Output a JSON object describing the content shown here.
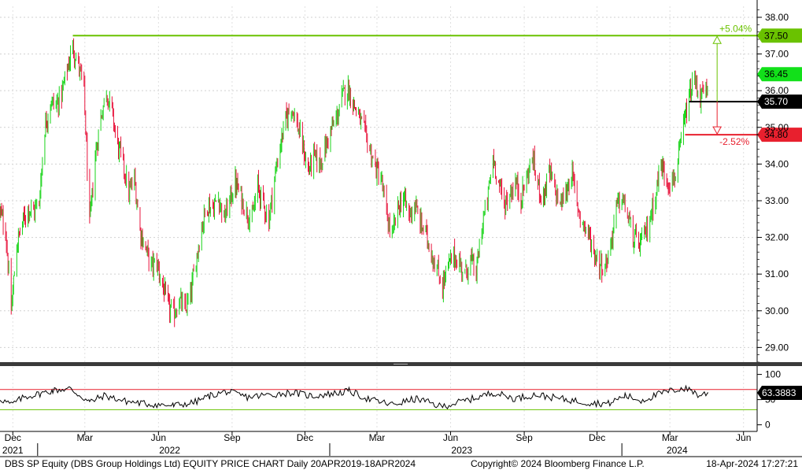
{
  "chart_data": {
    "type": "candlestick",
    "instrument": "DBS SP Equity (DBS Group Holdings Ltd) EQUITY PRICE CHART",
    "footer": {
      "left": "DBS SP Equity (DBS Group Holdings Ltd) EQUITY PRICE CHART  Daily 20APR2019-18APR2024",
      "center": "Copyright© 2024 Bloomberg Finance L.P.",
      "right": "18-Apr-2024 17:27:21"
    },
    "price_axis": {
      "ylim": [
        28.6,
        38.3
      ],
      "ticks": [
        "38.00",
        "37.00",
        "36.00",
        "35.00",
        "34.00",
        "33.00",
        "32.00",
        "31.00",
        "30.00",
        "29.00"
      ],
      "tick_values": [
        38,
        37,
        36,
        35,
        34,
        33,
        32,
        31,
        30,
        29
      ]
    },
    "rsi_axis": {
      "ylim": [
        -10,
        115
      ],
      "ticks": [
        "100",
        "50",
        "0"
      ],
      "tick_values": [
        100,
        50,
        0
      ],
      "overbought": 70,
      "oversold": 30,
      "last_value": "63.3883"
    },
    "x_axis": {
      "start_date": "2021-11-15",
      "end_date": "2024-06-18",
      "month_labels": [
        {
          "label": "Dec",
          "date": "2021-12-01"
        },
        {
          "label": "Mar",
          "date": "2022-03-01"
        },
        {
          "label": "Jun",
          "date": "2022-06-01"
        },
        {
          "label": "Sep",
          "date": "2022-09-01"
        },
        {
          "label": "Dec",
          "date": "2022-12-01"
        },
        {
          "label": "Mar",
          "date": "2023-03-01"
        },
        {
          "label": "Jun",
          "date": "2023-06-01"
        },
        {
          "label": "Sep",
          "date": "2023-09-01"
        },
        {
          "label": "Dec",
          "date": "2023-12-01"
        },
        {
          "label": "Mar",
          "date": "2024-03-01"
        },
        {
          "label": "Jun",
          "date": "2024-06-01"
        }
      ],
      "year_labels": [
        {
          "label": "2021",
          "date": "2021-12-01"
        },
        {
          "label": "2022",
          "date": "2022-06-15"
        },
        {
          "label": "2023",
          "date": "2023-06-15"
        },
        {
          "label": "2024",
          "date": "2024-03-10"
        }
      ]
    },
    "price_path": [
      [
        "2021-11-15",
        32.7
      ],
      [
        "2021-11-22",
        32.2
      ],
      [
        "2021-11-29",
        30.0
      ],
      [
        "2021-12-06",
        31.8
      ],
      [
        "2021-12-13",
        32.4
      ],
      [
        "2021-12-20",
        32.8
      ],
      [
        "2021-12-27",
        32.7
      ],
      [
        "2022-01-03",
        33.0
      ],
      [
        "2022-01-10",
        35.0
      ],
      [
        "2022-01-17",
        35.7
      ],
      [
        "2022-01-24",
        35.6
      ],
      [
        "2022-01-31",
        35.9
      ],
      [
        "2022-02-07",
        36.6
      ],
      [
        "2022-02-14",
        37.2
      ],
      [
        "2022-02-21",
        36.7
      ],
      [
        "2022-02-28",
        36.0
      ],
      [
        "2022-03-07",
        32.3
      ],
      [
        "2022-03-14",
        34.2
      ],
      [
        "2022-03-21",
        35.3
      ],
      [
        "2022-03-28",
        36.0
      ],
      [
        "2022-04-04",
        35.4
      ],
      [
        "2022-04-11",
        34.5
      ],
      [
        "2022-04-18",
        34.0
      ],
      [
        "2022-04-25",
        33.2
      ],
      [
        "2022-05-02",
        33.6
      ],
      [
        "2022-05-09",
        32.2
      ],
      [
        "2022-05-16",
        31.7
      ],
      [
        "2022-05-23",
        31.2
      ],
      [
        "2022-05-30",
        31.3
      ],
      [
        "2022-06-06",
        30.7
      ],
      [
        "2022-06-13",
        30.1
      ],
      [
        "2022-06-20",
        29.9
      ],
      [
        "2022-06-27",
        30.3
      ],
      [
        "2022-07-04",
        30.0
      ],
      [
        "2022-07-11",
        30.4
      ],
      [
        "2022-07-18",
        31.4
      ],
      [
        "2022-07-25",
        32.3
      ],
      [
        "2022-08-01",
        32.9
      ],
      [
        "2022-08-08",
        32.8
      ],
      [
        "2022-08-15",
        33.1
      ],
      [
        "2022-08-22",
        32.5
      ],
      [
        "2022-08-29",
        33.0
      ],
      [
        "2022-09-05",
        33.5
      ],
      [
        "2022-09-12",
        33.1
      ],
      [
        "2022-09-19",
        32.7
      ],
      [
        "2022-09-26",
        32.5
      ],
      [
        "2022-10-03",
        33.4
      ],
      [
        "2022-10-10",
        32.9
      ],
      [
        "2022-10-17",
        32.5
      ],
      [
        "2022-10-24",
        33.6
      ],
      [
        "2022-10-31",
        34.5
      ],
      [
        "2022-11-07",
        35.2
      ],
      [
        "2022-11-14",
        35.6
      ],
      [
        "2022-11-21",
        35.1
      ],
      [
        "2022-11-28",
        34.5
      ],
      [
        "2022-12-05",
        33.8
      ],
      [
        "2022-12-12",
        34.2
      ],
      [
        "2022-12-19",
        34.0
      ],
      [
        "2022-12-26",
        34.4
      ],
      [
        "2023-01-02",
        34.9
      ],
      [
        "2023-01-09",
        35.2
      ],
      [
        "2023-01-16",
        35.8
      ],
      [
        "2023-01-23",
        36.1
      ],
      [
        "2023-01-30",
        35.7
      ],
      [
        "2023-02-06",
        35.3
      ],
      [
        "2023-02-13",
        34.9
      ],
      [
        "2023-02-20",
        34.4
      ],
      [
        "2023-02-27",
        33.9
      ],
      [
        "2023-03-06",
        33.6
      ],
      [
        "2023-03-13",
        32.6
      ],
      [
        "2023-03-20",
        32.0
      ],
      [
        "2023-03-27",
        32.8
      ],
      [
        "2023-04-03",
        33.1
      ],
      [
        "2023-04-10",
        32.6
      ],
      [
        "2023-04-17",
        32.9
      ],
      [
        "2023-04-24",
        32.4
      ],
      [
        "2023-05-01",
        32.1
      ],
      [
        "2023-05-08",
        31.6
      ],
      [
        "2023-05-15",
        31.1
      ],
      [
        "2023-05-22",
        30.7
      ],
      [
        "2023-05-29",
        31.2
      ],
      [
        "2023-06-05",
        31.5
      ],
      [
        "2023-06-12",
        31.3
      ],
      [
        "2023-06-19",
        31.0
      ],
      [
        "2023-06-26",
        31.4
      ],
      [
        "2023-07-03",
        31.0
      ],
      [
        "2023-07-10",
        32.3
      ],
      [
        "2023-07-17",
        33.0
      ],
      [
        "2023-07-24",
        34.2
      ],
      [
        "2023-08-01",
        33.4
      ],
      [
        "2023-08-07",
        32.9
      ],
      [
        "2023-08-14",
        33.2
      ],
      [
        "2023-08-21",
        33.5
      ],
      [
        "2023-08-28",
        33.1
      ],
      [
        "2023-09-04",
        33.6
      ],
      [
        "2023-09-11",
        34.2
      ],
      [
        "2023-09-18",
        33.4
      ],
      [
        "2023-09-25",
        33.1
      ],
      [
        "2023-10-02",
        33.8
      ],
      [
        "2023-10-09",
        33.3
      ],
      [
        "2023-10-16",
        32.9
      ],
      [
        "2023-10-23",
        33.2
      ],
      [
        "2023-10-30",
        33.8
      ],
      [
        "2023-11-06",
        32.9
      ],
      [
        "2023-11-13",
        32.4
      ],
      [
        "2023-11-20",
        32.1
      ],
      [
        "2023-11-27",
        31.6
      ],
      [
        "2023-12-04",
        31.3
      ],
      [
        "2023-12-11",
        31.2
      ],
      [
        "2023-12-18",
        31.8
      ],
      [
        "2023-12-25",
        32.8
      ],
      [
        "2024-01-01",
        33.1
      ],
      [
        "2024-01-08",
        32.6
      ],
      [
        "2024-01-15",
        32.0
      ],
      [
        "2024-01-22",
        31.8
      ],
      [
        "2024-01-29",
        32.0
      ],
      [
        "2024-02-05",
        32.5
      ],
      [
        "2024-02-12",
        33.2
      ],
      [
        "2024-02-19",
        34.0
      ],
      [
        "2024-02-26",
        33.6
      ],
      [
        "2024-03-04",
        33.5
      ],
      [
        "2024-03-11",
        34.0
      ],
      [
        "2024-03-18",
        35.0
      ],
      [
        "2024-03-25",
        35.8
      ],
      [
        "2024-04-01",
        36.3
      ],
      [
        "2024-04-08",
        35.8
      ],
      [
        "2024-04-15",
        36.0
      ],
      [
        "2024-04-18",
        35.7
      ]
    ],
    "rsi_path": [
      [
        "2021-11-15",
        52
      ],
      [
        "2021-11-29",
        40
      ],
      [
        "2021-12-15",
        55
      ],
      [
        "2022-01-05",
        62
      ],
      [
        "2022-01-20",
        68
      ],
      [
        "2022-02-10",
        72
      ],
      [
        "2022-03-07",
        45
      ],
      [
        "2022-03-25",
        58
      ],
      [
        "2022-04-20",
        47
      ],
      [
        "2022-05-20",
        41
      ],
      [
        "2022-06-20",
        38
      ],
      [
        "2022-07-15",
        44
      ],
      [
        "2022-08-05",
        58
      ],
      [
        "2022-08-25",
        66
      ],
      [
        "2022-09-20",
        55
      ],
      [
        "2022-10-20",
        60
      ],
      [
        "2022-11-15",
        64
      ],
      [
        "2022-12-10",
        57
      ],
      [
        "2023-01-10",
        63
      ],
      [
        "2023-01-25",
        67
      ],
      [
        "2023-02-20",
        50
      ],
      [
        "2023-03-20",
        40
      ],
      [
        "2023-04-20",
        52
      ],
      [
        "2023-05-20",
        36
      ],
      [
        "2023-06-20",
        48
      ],
      [
        "2023-07-25",
        64
      ],
      [
        "2023-08-20",
        52
      ],
      [
        "2023-09-15",
        60
      ],
      [
        "2023-10-15",
        52
      ],
      [
        "2023-11-20",
        44
      ],
      [
        "2023-12-15",
        42
      ],
      [
        "2024-01-05",
        58
      ],
      [
        "2024-01-25",
        48
      ],
      [
        "2024-02-20",
        63
      ],
      [
        "2024-03-15",
        72
      ],
      [
        "2024-03-28",
        70
      ],
      [
        "2024-04-05",
        58
      ],
      [
        "2024-04-18",
        63.4
      ]
    ],
    "annotations": {
      "high_line": {
        "value": 37.5,
        "label": "37.50",
        "start_date": "2022-02-14",
        "color": "#6ac200"
      },
      "last_price": {
        "value": 35.7,
        "label": "35.70",
        "start_date": "2024-03-25",
        "color": "#000000"
      },
      "low_line": {
        "value": 34.8,
        "label": "34.80",
        "start_date": "2024-03-20",
        "color": "#e8202e"
      },
      "recent_high": {
        "value": 36.45,
        "label": "36.45",
        "color": "#12e01a"
      },
      "upside_pct": "+5.04%",
      "downside_pct": "-2.52%",
      "arrow_date": "2024-04-29"
    },
    "colors": {
      "up": "#19d419",
      "down": "#e8143c",
      "rsi_line": "#000000"
    }
  }
}
